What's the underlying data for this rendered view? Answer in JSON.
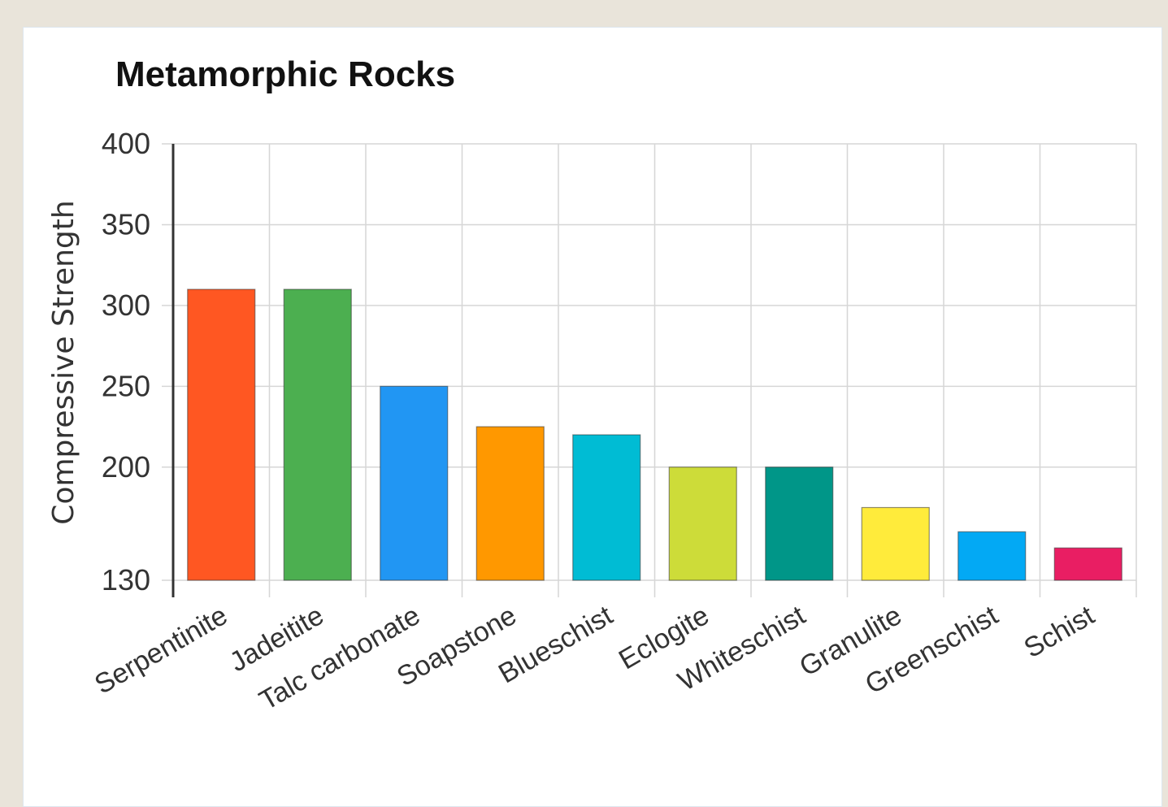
{
  "chart_data": {
    "type": "bar",
    "title": "Metamorphic Rocks",
    "xlabel": "",
    "ylabel": "Compressive Strength",
    "categories": [
      "Serpentinite",
      "Jadeitite",
      "Talc carbonate",
      "Soapstone",
      "Blueschist",
      "Eclogite",
      "Whiteschist",
      "Granulite",
      "Greenschist",
      "Schist"
    ],
    "values": [
      310,
      310,
      250,
      225,
      220,
      200,
      200,
      175,
      160,
      150
    ],
    "colors": [
      "#ff5722",
      "#4caf50",
      "#2196f3",
      "#ff9800",
      "#00bcd4",
      "#cddc39",
      "#009688",
      "#ffeb3b",
      "#03a9f4",
      "#e91e63"
    ],
    "ylim": [
      130,
      400
    ],
    "yticks": [
      130,
      200,
      250,
      300,
      350,
      400
    ],
    "grid": true,
    "legend": "none"
  }
}
